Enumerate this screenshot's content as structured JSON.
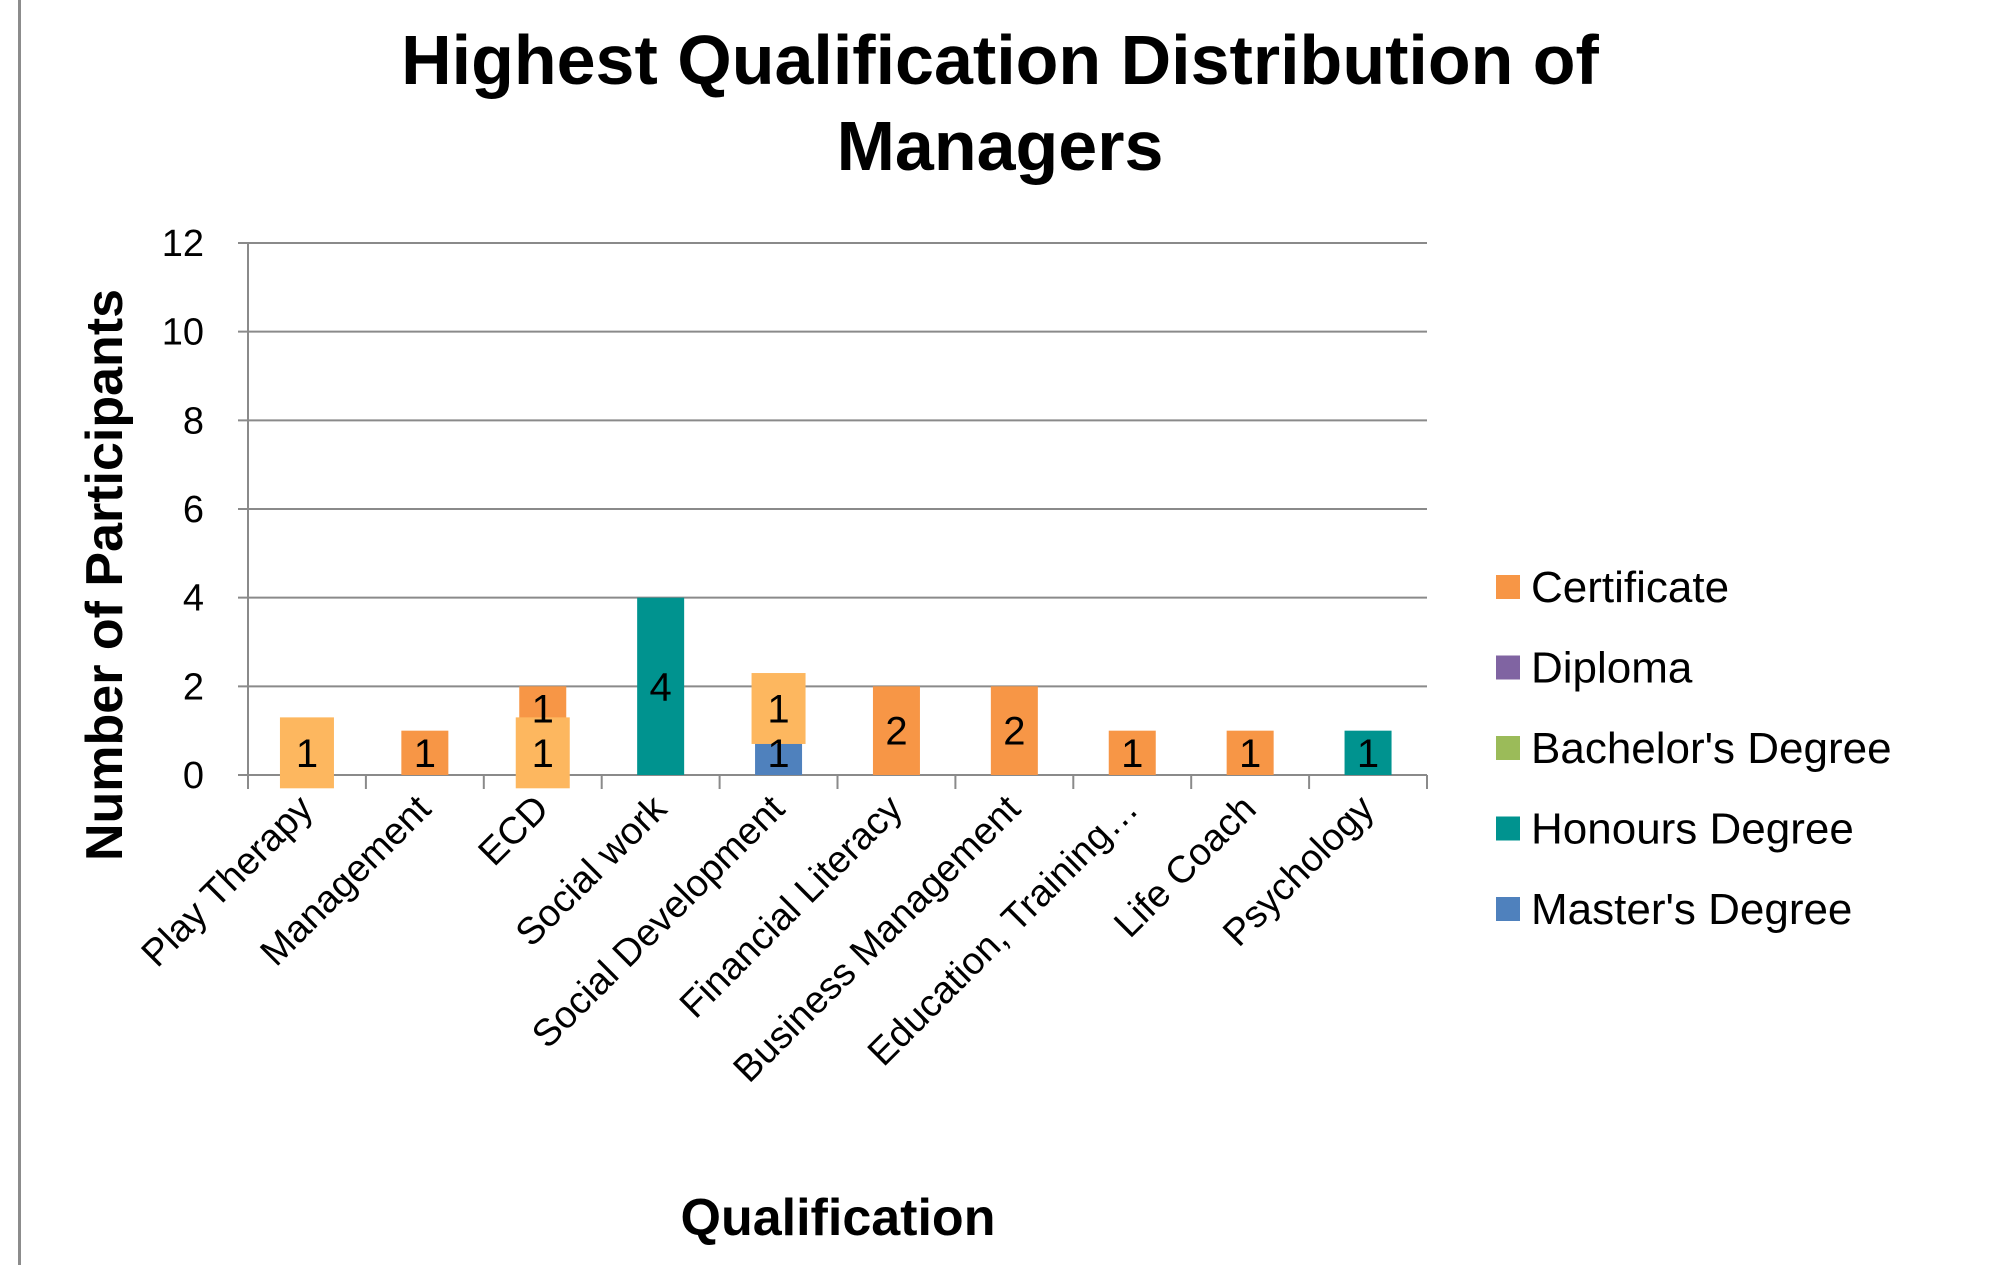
{
  "chart_data": {
    "type": "bar",
    "stacked": true,
    "title": "Highest Qualification Distribution of Managers",
    "title_lines": [
      "Highest Qualification Distribution of",
      "Managers"
    ],
    "xlabel": "Qualification",
    "ylabel": "Number of Participants",
    "ylim": [
      0,
      12
    ],
    "yticks": [
      "0",
      "2",
      "4",
      "6",
      "8",
      "10",
      "12"
    ],
    "grid": true,
    "legend_position": "right",
    "categories": [
      "Play Therapy",
      "Management",
      "ECD",
      "Social work",
      "Social Development",
      "Financial Literacy",
      "Business Management",
      "Education, Training…",
      "Life Coach",
      "Psychology"
    ],
    "series": [
      {
        "name": "Master's Degree",
        "color": "#4F81BD",
        "values": [
          0,
          0,
          0,
          0,
          1,
          0,
          0,
          0,
          0,
          0
        ]
      },
      {
        "name": "Honours Degree",
        "color": "#00938F",
        "values": [
          0,
          0,
          0,
          4,
          0,
          0,
          0,
          0,
          0,
          1
        ]
      },
      {
        "name": "Bachelor's Degree",
        "color": "#9BBB59",
        "values": [
          0,
          0,
          0,
          0,
          0,
          0,
          0,
          0,
          0,
          0
        ]
      },
      {
        "name": "Diploma",
        "color": "#8064A2",
        "values": [
          0,
          0,
          1,
          0,
          0,
          0,
          0,
          0,
          0,
          0
        ]
      },
      {
        "name": "Certificate",
        "color": "#F79646",
        "values": [
          1,
          1,
          1,
          0,
          1,
          2,
          2,
          1,
          1,
          0
        ]
      }
    ],
    "legend_order": [
      "Certificate",
      "Diploma",
      "Bachelor's Degree",
      "Honours Degree",
      "Master's Degree"
    ],
    "boxed_labels": [
      {
        "category": "Play Therapy",
        "series": "Certificate"
      },
      {
        "category": "ECD",
        "series": "Diploma"
      },
      {
        "category": "Social Development",
        "series": "Certificate"
      }
    ],
    "label_box_color": "#FDB75F"
  }
}
